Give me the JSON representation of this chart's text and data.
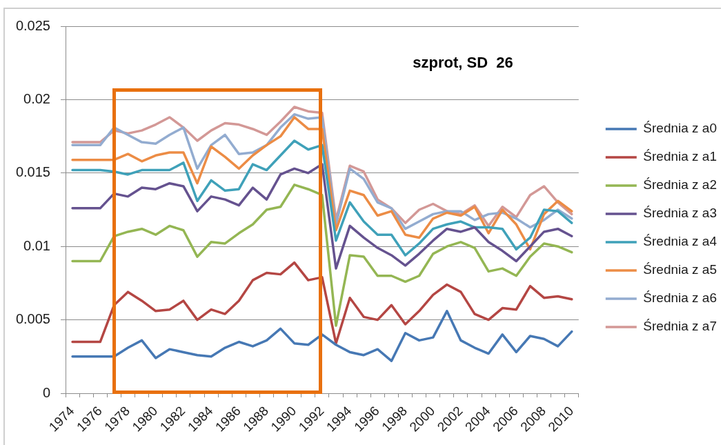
{
  "chart_data": {
    "type": "line",
    "title": "szprot, SD  26",
    "categories": [
      "1974",
      null,
      "1976",
      null,
      "1978",
      null,
      "1980",
      null,
      "1982",
      null,
      "1984",
      null,
      "1986",
      null,
      "1988",
      null,
      "1990",
      null,
      "1992",
      null,
      "1994",
      null,
      "1996",
      null,
      "1998",
      null,
      "2000",
      null,
      "2002",
      null,
      "2004",
      null,
      "2006",
      null,
      "2008",
      null,
      "2010"
    ],
    "series": [
      {
        "name": "Średnia z a0",
        "color": "#4678b4",
        "values": [
          0.0025,
          0.0025,
          0.0025,
          0.0025,
          0.0031,
          0.0036,
          0.0024,
          0.003,
          0.0028,
          0.0026,
          0.0025,
          0.0031,
          0.0035,
          0.0032,
          0.0036,
          0.0044,
          0.0034,
          0.0033,
          0.004,
          0.0033,
          0.0028,
          0.0026,
          0.003,
          0.0022,
          0.0041,
          0.0036,
          0.0038,
          0.0056,
          0.0036,
          0.0031,
          0.0027,
          0.004,
          0.0028,
          0.0039,
          0.0037,
          0.0032,
          0.0042
        ]
      },
      {
        "name": "Średnia z a1",
        "color": "#b44643",
        "values": [
          0.0035,
          0.0035,
          0.0035,
          0.006,
          0.0069,
          0.0063,
          0.0056,
          0.0057,
          0.0063,
          0.005,
          0.0057,
          0.0054,
          0.0063,
          0.0077,
          0.0082,
          0.0081,
          0.0089,
          0.0077,
          0.0079,
          0.0034,
          0.0065,
          0.0052,
          0.005,
          0.006,
          0.0047,
          0.0056,
          0.0067,
          0.0074,
          0.0069,
          0.0054,
          0.005,
          0.0058,
          0.0057,
          0.0073,
          0.0065,
          0.0066,
          0.0064
        ]
      },
      {
        "name": "Średnia z a2",
        "color": "#94b653",
        "values": [
          0.009,
          0.009,
          0.009,
          0.0107,
          0.011,
          0.0112,
          0.0108,
          0.0114,
          0.0111,
          0.0093,
          0.0103,
          0.0102,
          0.0109,
          0.0115,
          0.0125,
          0.0127,
          0.0142,
          0.0139,
          0.0135,
          0.0046,
          0.0094,
          0.0093,
          0.008,
          0.008,
          0.0076,
          0.008,
          0.0095,
          0.01,
          0.0103,
          0.0099,
          0.0083,
          0.0085,
          0.008,
          0.0093,
          0.0102,
          0.01,
          0.0096
        ]
      },
      {
        "name": "Średnia z a3",
        "color": "#65528f",
        "values": [
          0.0126,
          0.0126,
          0.0126,
          0.0136,
          0.0134,
          0.014,
          0.0139,
          0.0143,
          0.0141,
          0.0124,
          0.0134,
          0.0132,
          0.0128,
          0.014,
          0.0132,
          0.0149,
          0.0153,
          0.015,
          0.0156,
          0.0085,
          0.0114,
          0.0106,
          0.0099,
          0.0094,
          0.0087,
          0.0095,
          0.0104,
          0.0112,
          0.011,
          0.0113,
          0.0103,
          0.0097,
          0.009,
          0.01,
          0.011,
          0.0112,
          0.0107
        ]
      },
      {
        "name": "Średnia z a4",
        "color": "#3fa1b9",
        "values": [
          0.0152,
          0.0152,
          0.0152,
          0.0151,
          0.0149,
          0.0152,
          0.0152,
          0.0152,
          0.0157,
          0.0131,
          0.0145,
          0.0138,
          0.0139,
          0.0156,
          0.0152,
          0.0162,
          0.0172,
          0.0166,
          0.0169,
          0.0104,
          0.013,
          0.0117,
          0.0108,
          0.0108,
          0.0094,
          0.0102,
          0.0112,
          0.0115,
          0.0117,
          0.0113,
          0.0113,
          0.0112,
          0.0098,
          0.0106,
          0.0125,
          0.0124,
          0.0116
        ]
      },
      {
        "name": "Średnia z a5",
        "color": "#ec8c45",
        "values": [
          0.0159,
          0.0159,
          0.0159,
          0.0159,
          0.0163,
          0.0158,
          0.0162,
          0.0164,
          0.0164,
          0.0143,
          0.0168,
          0.0161,
          0.0153,
          0.0162,
          0.0169,
          0.0175,
          0.0188,
          0.018,
          0.018,
          0.0111,
          0.0138,
          0.0135,
          0.0121,
          0.0124,
          0.0108,
          0.0106,
          0.0119,
          0.0123,
          0.0121,
          0.0127,
          0.0109,
          0.0125,
          0.0115,
          0.0098,
          0.0122,
          0.0131,
          0.0124
        ]
      },
      {
        "name": "Średnia z a6",
        "color": "#93acd0",
        "values": [
          0.0169,
          0.0169,
          0.0169,
          0.0181,
          0.0176,
          0.0171,
          0.017,
          0.0176,
          0.0181,
          0.0153,
          0.0169,
          0.0176,
          0.0163,
          0.0164,
          0.0169,
          0.0181,
          0.019,
          0.0187,
          0.0188,
          0.0115,
          0.0153,
          0.0146,
          0.013,
          0.0126,
          0.0112,
          0.0117,
          0.0122,
          0.0124,
          0.0124,
          0.0118,
          0.0122,
          0.0123,
          0.0119,
          0.0113,
          0.0118,
          0.0125,
          0.0119
        ]
      },
      {
        "name": "Średnia z a7",
        "color": "#d39896",
        "values": [
          0.0171,
          0.0171,
          0.0171,
          0.0179,
          0.0177,
          0.0179,
          0.0183,
          0.0188,
          0.0181,
          0.0172,
          0.0179,
          0.0184,
          0.0183,
          0.018,
          0.0176,
          0.0185,
          0.0195,
          0.0192,
          0.0191,
          0.0118,
          0.0155,
          0.0151,
          0.0132,
          0.0126,
          0.0116,
          0.0125,
          0.0129,
          0.0124,
          0.0122,
          0.0128,
          0.0114,
          0.0127,
          0.012,
          0.0135,
          0.0141,
          0.013,
          0.0122
        ]
      }
    ],
    "ylim": [
      0,
      0.025
    ],
    "yticks": [
      0,
      0.005,
      0.01,
      0.015,
      0.02,
      0.025
    ],
    "grid": "y",
    "legend": "right"
  }
}
